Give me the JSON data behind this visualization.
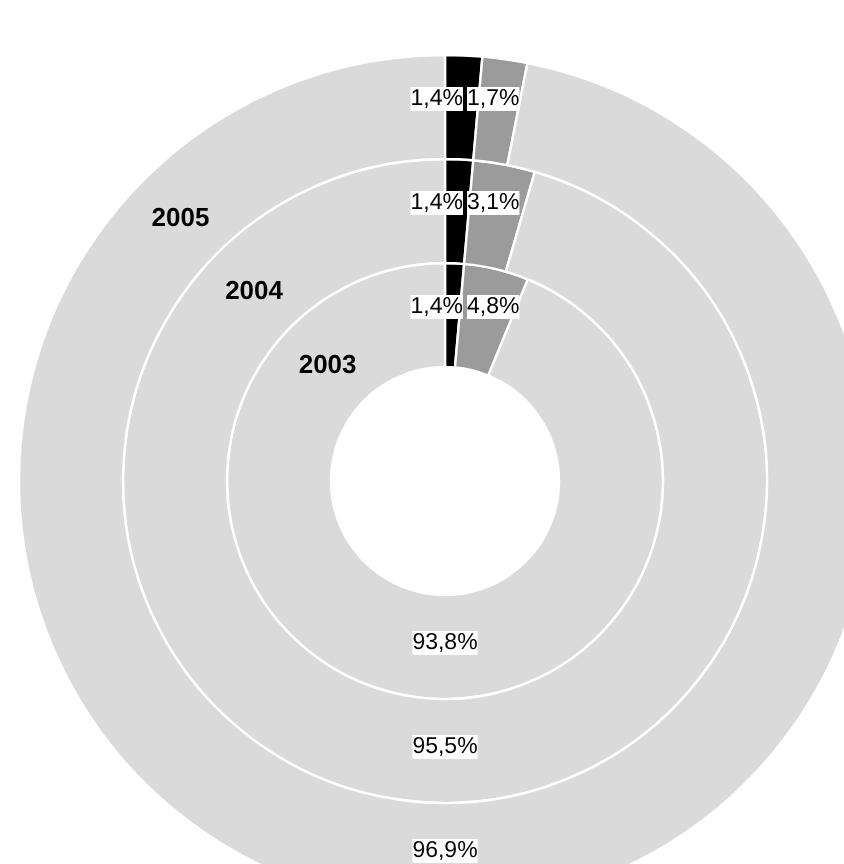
{
  "chart_data": {
    "type": "donut",
    "categories": [
      null,
      null,
      null
    ],
    "series": [
      {
        "name": "2003",
        "values": [
          1.4,
          4.8,
          93.8
        ],
        "colors": [
          "#000000",
          "#9b9b9b",
          "#dadadb"
        ],
        "value_labels": [
          "1,4%",
          "4,8%",
          "93,8%"
        ]
      },
      {
        "name": "2004",
        "values": [
          1.4,
          3.1,
          95.5
        ],
        "colors": [
          "#000000",
          "#9b9b9b",
          "#dadadb"
        ],
        "value_labels": [
          "1,4%",
          "3,1%",
          "95,5%"
        ]
      },
      {
        "name": "2005",
        "values": [
          1.4,
          1.7,
          96.9
        ],
        "colors": [
          "#000000",
          "#9b9b9b",
          "#dadadb"
        ],
        "value_labels": [
          "1,4%",
          "1,7%",
          "96,9%"
        ]
      }
    ]
  }
}
